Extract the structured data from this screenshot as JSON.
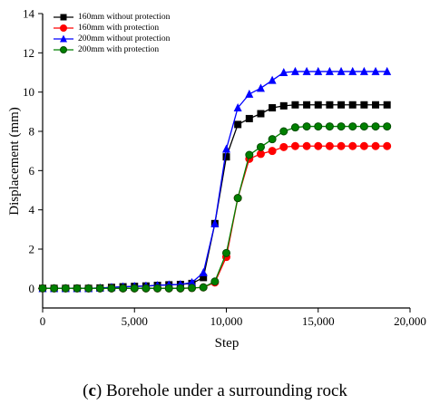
{
  "chart_data": {
    "type": "line",
    "x_label": "Step",
    "y_label": "Displacement (mm)",
    "x": [
      0,
      625,
      1250,
      1875,
      2500,
      3125,
      3750,
      4375,
      5000,
      5625,
      6250,
      6875,
      7500,
      8125,
      8750,
      9375,
      10000,
      10625,
      11250,
      11875,
      12500,
      13125,
      13750,
      14375,
      15000,
      15625,
      16250,
      16875,
      17500,
      18125,
      18750
    ],
    "series": [
      {
        "name": "160mm without protection",
        "color": "#000000",
        "marker": "square",
        "values": [
          0,
          0,
          0,
          0,
          0,
          0.02,
          0.05,
          0.08,
          0.1,
          0.12,
          0.15,
          0.18,
          0.2,
          0.25,
          0.55,
          3.3,
          6.7,
          8.35,
          8.65,
          8.9,
          9.2,
          9.3,
          9.35,
          9.35,
          9.35,
          9.35,
          9.35,
          9.35,
          9.35,
          9.35,
          9.35
        ]
      },
      {
        "name": "160mm with protection",
        "color": "#ff0000",
        "marker": "circle",
        "values": [
          0,
          0,
          0,
          0,
          0,
          0,
          0,
          0,
          0,
          0,
          0,
          0,
          0,
          0.02,
          0.05,
          0.3,
          1.6,
          4.6,
          6.6,
          6.85,
          7.0,
          7.2,
          7.25,
          7.25,
          7.25,
          7.25,
          7.25,
          7.25,
          7.25,
          7.25,
          7.25
        ]
      },
      {
        "name": "200mm without protection",
        "color": "#0000ff",
        "marker": "triangle",
        "values": [
          0,
          0,
          0,
          0,
          0,
          0.02,
          0.05,
          0.08,
          0.1,
          0.12,
          0.15,
          0.18,
          0.2,
          0.3,
          0.8,
          3.3,
          7.1,
          9.2,
          9.9,
          10.2,
          10.6,
          11.0,
          11.05,
          11.05,
          11.05,
          11.05,
          11.05,
          11.05,
          11.05,
          11.05,
          11.05
        ]
      },
      {
        "name": "200mm with protection",
        "color": "#008000",
        "marker": "circle",
        "values": [
          0,
          0,
          0,
          0,
          0,
          0,
          0,
          0,
          0,
          0,
          0,
          0,
          0,
          0.02,
          0.05,
          0.35,
          1.8,
          4.6,
          6.8,
          7.2,
          7.6,
          8.0,
          8.2,
          8.25,
          8.25,
          8.25,
          8.25,
          8.25,
          8.25,
          8.25,
          8.25
        ]
      }
    ],
    "xlim": [
      0,
      20000
    ],
    "xticks": [
      0,
      {
        "value": 5000,
        "label": "5,000"
      },
      {
        "value": 10000,
        "label": "10,000"
      },
      {
        "value": 15000,
        "label": "15,000"
      },
      {
        "value": 20000,
        "label": "20,000"
      }
    ],
    "ylim": [
      -1,
      14
    ],
    "yticks": [
      0,
      2,
      4,
      6,
      8,
      10,
      12,
      14
    ],
    "legend": "upper left",
    "caption": {
      "open": "(",
      "label": "c",
      "text": ") Borehole under a surrounding rock"
    }
  }
}
